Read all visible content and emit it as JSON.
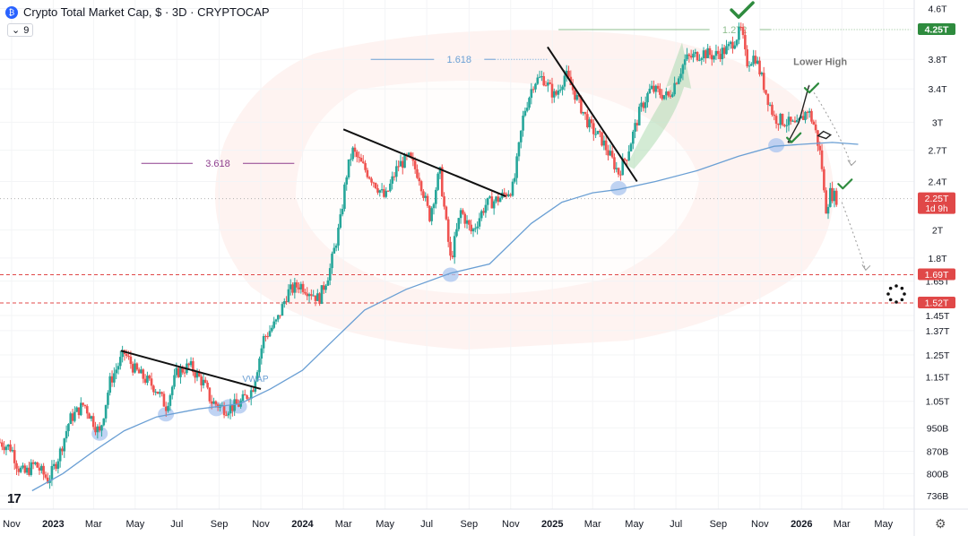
{
  "header": {
    "title": "Crypto Total Market Cap, $ · 3D · CRYPTOCAP",
    "indicator_count": "9"
  },
  "colors": {
    "up": "#26a69a",
    "down": "#ef5350",
    "vwap": "#6a9fd4",
    "trendline": "#111111",
    "fib_1618": "#6a9fd4",
    "fib_3618": "#8e3e8e",
    "fib_1272": "#8fbf8f",
    "check": "#2e8b3e",
    "price_tag": "#e04848",
    "current_tag": "#2e8b3e"
  },
  "chart_data": {
    "type": "candlestick",
    "title": "Crypto Total Market Cap, $ · 3D · CRYPTOCAP",
    "y_scale": "log",
    "ylim": [
      0.7,
      4.75
    ],
    "y_unit": "trillion USD",
    "x_range": [
      "2022-10-15",
      "2026-06-15"
    ],
    "x_ticks": [
      {
        "date": "2022-11-01",
        "label": "Nov"
      },
      {
        "date": "2023-01-01",
        "label": "2023",
        "bold": true
      },
      {
        "date": "2023-03-01",
        "label": "Mar"
      },
      {
        "date": "2023-05-01",
        "label": "May"
      },
      {
        "date": "2023-07-01",
        "label": "Jul"
      },
      {
        "date": "2023-09-01",
        "label": "Sep"
      },
      {
        "date": "2023-11-01",
        "label": "Nov"
      },
      {
        "date": "2024-01-01",
        "label": "2024",
        "bold": true
      },
      {
        "date": "2024-03-01",
        "label": "Mar"
      },
      {
        "date": "2024-05-01",
        "label": "May"
      },
      {
        "date": "2024-07-01",
        "label": "Jul"
      },
      {
        "date": "2024-09-01",
        "label": "Sep"
      },
      {
        "date": "2024-11-01",
        "label": "Nov"
      },
      {
        "date": "2025-01-01",
        "label": "2025",
        "bold": true
      },
      {
        "date": "2025-03-01",
        "label": "Mar"
      },
      {
        "date": "2025-05-01",
        "label": "May"
      },
      {
        "date": "2025-07-01",
        "label": "Jul"
      },
      {
        "date": "2025-09-01",
        "label": "Sep"
      },
      {
        "date": "2025-11-01",
        "label": "Nov"
      },
      {
        "date": "2026-01-01",
        "label": "2026",
        "bold": true
      },
      {
        "date": "2026-03-01",
        "label": "Mar"
      },
      {
        "date": "2026-05-01",
        "label": "May"
      }
    ],
    "y_ticks": [
      {
        "value": 4.6,
        "label": "4.6T"
      },
      {
        "value": 3.8,
        "label": "3.8T"
      },
      {
        "value": 3.4,
        "label": "3.4T"
      },
      {
        "value": 3.0,
        "label": "3T"
      },
      {
        "value": 2.7,
        "label": "2.7T"
      },
      {
        "value": 2.4,
        "label": "2.4T"
      },
      {
        "value": 2.0,
        "label": "2T"
      },
      {
        "value": 1.8,
        "label": "1.8T"
      },
      {
        "value": 1.65,
        "label": "1.65T"
      },
      {
        "value": 1.45,
        "label": "1.45T"
      },
      {
        "value": 1.37,
        "label": "1.37T"
      },
      {
        "value": 1.25,
        "label": "1.25T"
      },
      {
        "value": 1.15,
        "label": "1.15T"
      },
      {
        "value": 1.05,
        "label": "1.05T"
      },
      {
        "value": 0.95,
        "label": "950B"
      },
      {
        "value": 0.87,
        "label": "870B"
      },
      {
        "value": 0.8,
        "label": "800B"
      },
      {
        "value": 0.736,
        "label": "736B"
      }
    ],
    "price_tags": [
      {
        "value": 4.25,
        "label": "4.25T",
        "style": "current"
      },
      {
        "value": 2.25,
        "label": "2.25T",
        "sub": "1d 9h",
        "style": "last"
      },
      {
        "value": 1.69,
        "label": "1.69T",
        "style": "level"
      },
      {
        "value": 1.52,
        "label": "1.52T",
        "style": "level"
      }
    ],
    "path": [
      [
        "2022-10-15",
        0.9
      ],
      [
        "2022-11-01",
        0.88
      ],
      [
        "2022-11-10",
        0.82
      ],
      [
        "2022-11-20",
        0.8
      ],
      [
        "2022-12-05",
        0.83
      ],
      [
        "2022-12-25",
        0.78
      ],
      [
        "2023-01-10",
        0.86
      ],
      [
        "2023-01-25",
        0.98
      ],
      [
        "2023-02-15",
        1.04
      ],
      [
        "2023-03-10",
        0.93
      ],
      [
        "2023-03-25",
        1.13
      ],
      [
        "2023-04-15",
        1.26
      ],
      [
        "2023-05-01",
        1.18
      ],
      [
        "2023-06-01",
        1.1
      ],
      [
        "2023-06-15",
        1.03
      ],
      [
        "2023-07-01",
        1.17
      ],
      [
        "2023-07-20",
        1.2
      ],
      [
        "2023-08-10",
        1.12
      ],
      [
        "2023-08-20",
        1.05
      ],
      [
        "2023-09-10",
        1.02
      ],
      [
        "2023-10-01",
        1.04
      ],
      [
        "2023-10-20",
        1.1
      ],
      [
        "2023-11-05",
        1.33
      ],
      [
        "2023-11-25",
        1.42
      ],
      [
        "2023-12-10",
        1.58
      ],
      [
        "2023-12-28",
        1.63
      ],
      [
        "2024-01-15",
        1.58
      ],
      [
        "2024-01-25",
        1.54
      ],
      [
        "2024-02-10",
        1.72
      ],
      [
        "2024-02-25",
        2.05
      ],
      [
        "2024-03-05",
        2.45
      ],
      [
        "2024-03-14",
        2.7
      ],
      [
        "2024-03-25",
        2.58
      ],
      [
        "2024-04-15",
        2.4
      ],
      [
        "2024-05-01",
        2.25
      ],
      [
        "2024-05-20",
        2.55
      ],
      [
        "2024-06-05",
        2.62
      ],
      [
        "2024-06-20",
        2.45
      ],
      [
        "2024-07-05",
        2.1
      ],
      [
        "2024-07-20",
        2.5
      ],
      [
        "2024-08-05",
        1.78
      ],
      [
        "2024-08-20",
        2.15
      ],
      [
        "2024-09-05",
        1.98
      ],
      [
        "2024-09-25",
        2.2
      ],
      [
        "2024-10-15",
        2.25
      ],
      [
        "2024-11-05",
        2.35
      ],
      [
        "2024-11-20",
        3.1
      ],
      [
        "2024-12-05",
        3.5
      ],
      [
        "2024-12-18",
        3.55
      ],
      [
        "2025-01-05",
        3.3
      ],
      [
        "2025-01-20",
        3.6
      ],
      [
        "2025-02-05",
        3.3
      ],
      [
        "2025-02-25",
        2.95
      ],
      [
        "2025-03-15",
        2.8
      ],
      [
        "2025-04-08",
        2.48
      ],
      [
        "2025-04-20",
        2.65
      ],
      [
        "2025-05-10",
        3.15
      ],
      [
        "2025-05-25",
        3.4
      ],
      [
        "2025-06-20",
        3.3
      ],
      [
        "2025-07-15",
        3.8
      ],
      [
        "2025-08-10",
        3.9
      ],
      [
        "2025-08-25",
        3.85
      ],
      [
        "2025-09-15",
        3.95
      ],
      [
        "2025-10-05",
        4.25
      ],
      [
        "2025-10-12",
        3.75
      ],
      [
        "2025-10-25",
        3.85
      ],
      [
        "2025-11-10",
        3.35
      ],
      [
        "2025-11-22",
        3.05
      ],
      [
        "2025-12-10",
        3.0
      ],
      [
        "2025-12-25",
        2.95
      ],
      [
        "2026-01-10",
        3.15
      ],
      [
        "2026-01-20",
        2.95
      ],
      [
        "2026-01-30",
        2.6
      ],
      [
        "2026-02-05",
        2.15
      ],
      [
        "2026-02-12",
        2.3
      ],
      [
        "2026-02-22",
        2.25
      ]
    ],
    "vwap": [
      [
        "2022-12-01",
        0.75
      ],
      [
        "2023-01-15",
        0.8
      ],
      [
        "2023-03-01",
        0.87
      ],
      [
        "2023-04-15",
        0.94
      ],
      [
        "2023-06-01",
        0.99
      ],
      [
        "2023-08-01",
        1.02
      ],
      [
        "2023-10-01",
        1.04
      ],
      [
        "2023-11-15",
        1.1
      ],
      [
        "2024-01-01",
        1.18
      ],
      [
        "2024-02-15",
        1.32
      ],
      [
        "2024-04-01",
        1.48
      ],
      [
        "2024-06-01",
        1.6
      ],
      [
        "2024-08-05",
        1.7
      ],
      [
        "2024-10-01",
        1.76
      ],
      [
        "2024-12-01",
        2.05
      ],
      [
        "2025-01-15",
        2.22
      ],
      [
        "2025-03-01",
        2.3
      ],
      [
        "2025-04-08",
        2.33
      ],
      [
        "2025-06-01",
        2.4
      ],
      [
        "2025-08-01",
        2.5
      ],
      [
        "2025-10-01",
        2.64
      ],
      [
        "2025-11-22",
        2.74
      ],
      [
        "2026-01-01",
        2.76
      ],
      [
        "2026-02-15",
        2.78
      ],
      [
        "2026-03-25",
        2.76
      ]
    ],
    "vwap_label": {
      "date": "2023-10-05",
      "value": 1.13,
      "text": "VWAP"
    },
    "trendlines": [
      [
        [
          "2023-04-10",
          1.27
        ],
        [
          "2023-11-01",
          1.1
        ]
      ],
      [
        [
          "2024-03-01",
          2.92
        ],
        [
          "2024-10-25",
          2.27
        ]
      ],
      [
        [
          "2024-12-25",
          3.98
        ],
        [
          "2025-05-05",
          2.4
        ]
      ]
    ],
    "fib_levels": [
      {
        "label": "1.272",
        "value": 4.25,
        "from": "2025-01-10",
        "to": "2026-06-10",
        "style": "fib_1272"
      },
      {
        "label": "1.618",
        "value": 3.8,
        "from": "2024-04-10",
        "to": "2024-12-25",
        "style": "fib_1618"
      },
      {
        "label": "3.618",
        "value": 2.57,
        "from": "2023-05-10",
        "to": "2023-12-20",
        "style": "fib_3618"
      }
    ],
    "horizontal_levels": [
      1.69,
      1.52,
      2.25
    ],
    "touch_points": [
      [
        "2023-03-10",
        0.93
      ],
      [
        "2023-06-15",
        1.0
      ],
      [
        "2023-08-28",
        1.02
      ],
      [
        "2023-09-15",
        1.03
      ],
      [
        "2023-09-30",
        1.03
      ],
      [
        "2024-08-05",
        1.69
      ],
      [
        "2025-04-08",
        2.34
      ],
      [
        "2025-11-25",
        2.75
      ]
    ],
    "check_marks": [
      [
        "2025-10-05",
        4.55
      ],
      [
        "2025-12-20",
        2.82
      ],
      [
        "2026-01-15",
        3.4
      ],
      [
        "2026-03-05",
        2.37
      ]
    ],
    "annotations": [
      {
        "text": "Lower High",
        "date": "2025-12-20",
        "value": 3.72
      }
    ],
    "projection_paths": [
      [
        [
          "2025-12-12",
          2.78
        ],
        [
          "2025-12-28",
          3.0
        ],
        [
          "2026-01-12",
          3.45
        ]
      ],
      [
        [
          "2026-01-12",
          3.45
        ],
        [
          "2026-02-25",
          2.9
        ],
        [
          "2026-03-15",
          2.55
        ]
      ],
      [
        [
          "2026-03-01",
          2.22
        ],
        [
          "2026-03-20",
          1.95
        ],
        [
          "2026-04-05",
          1.72
        ]
      ]
    ],
    "arrow_up": [
      [
        "2025-04-20",
        2.55
      ],
      [
        "2025-06-10",
        3.1
      ],
      [
        "2025-07-05",
        3.45
      ],
      [
        "2025-07-10",
        4.05
      ]
    ],
    "candles_per_month": 10,
    "seed": 7
  }
}
